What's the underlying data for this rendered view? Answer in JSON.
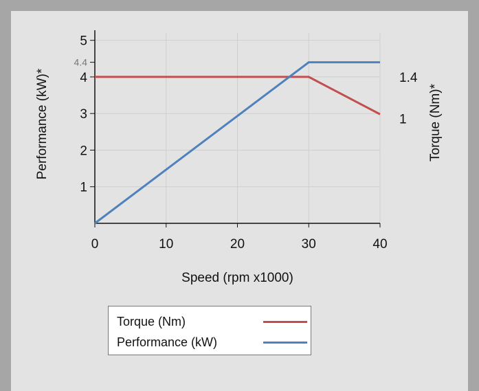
{
  "chart_data": {
    "type": "line",
    "xlabel": "Speed (rpm x1000)",
    "ylabel_left": "Performance (kW)*",
    "ylabel_right": "Torque (Nm)*",
    "xlim": [
      0,
      40
    ],
    "ylim_left": [
      0,
      5.2
    ],
    "xticks": [
      0,
      10,
      20,
      30,
      40
    ],
    "yticks_left": [
      1,
      2,
      3,
      4,
      5
    ],
    "ytick_highlight": 4.4,
    "yticks_right": [
      {
        "label": "1.4",
        "at_left_value": 4.0
      },
      {
        "label": "1",
        "at_left_value": 2.86
      }
    ],
    "grid": true,
    "series": [
      {
        "name": "Torque (Nm)",
        "color": "#c0504d",
        "x": [
          0,
          30,
          40
        ],
        "y": [
          4.0,
          4.0,
          2.98
        ]
      },
      {
        "name": "Performance (kW)",
        "color": "#4f81bd",
        "x": [
          0,
          30,
          40
        ],
        "y": [
          0,
          4.4,
          4.4
        ]
      }
    ],
    "legend_position": "bottom"
  }
}
